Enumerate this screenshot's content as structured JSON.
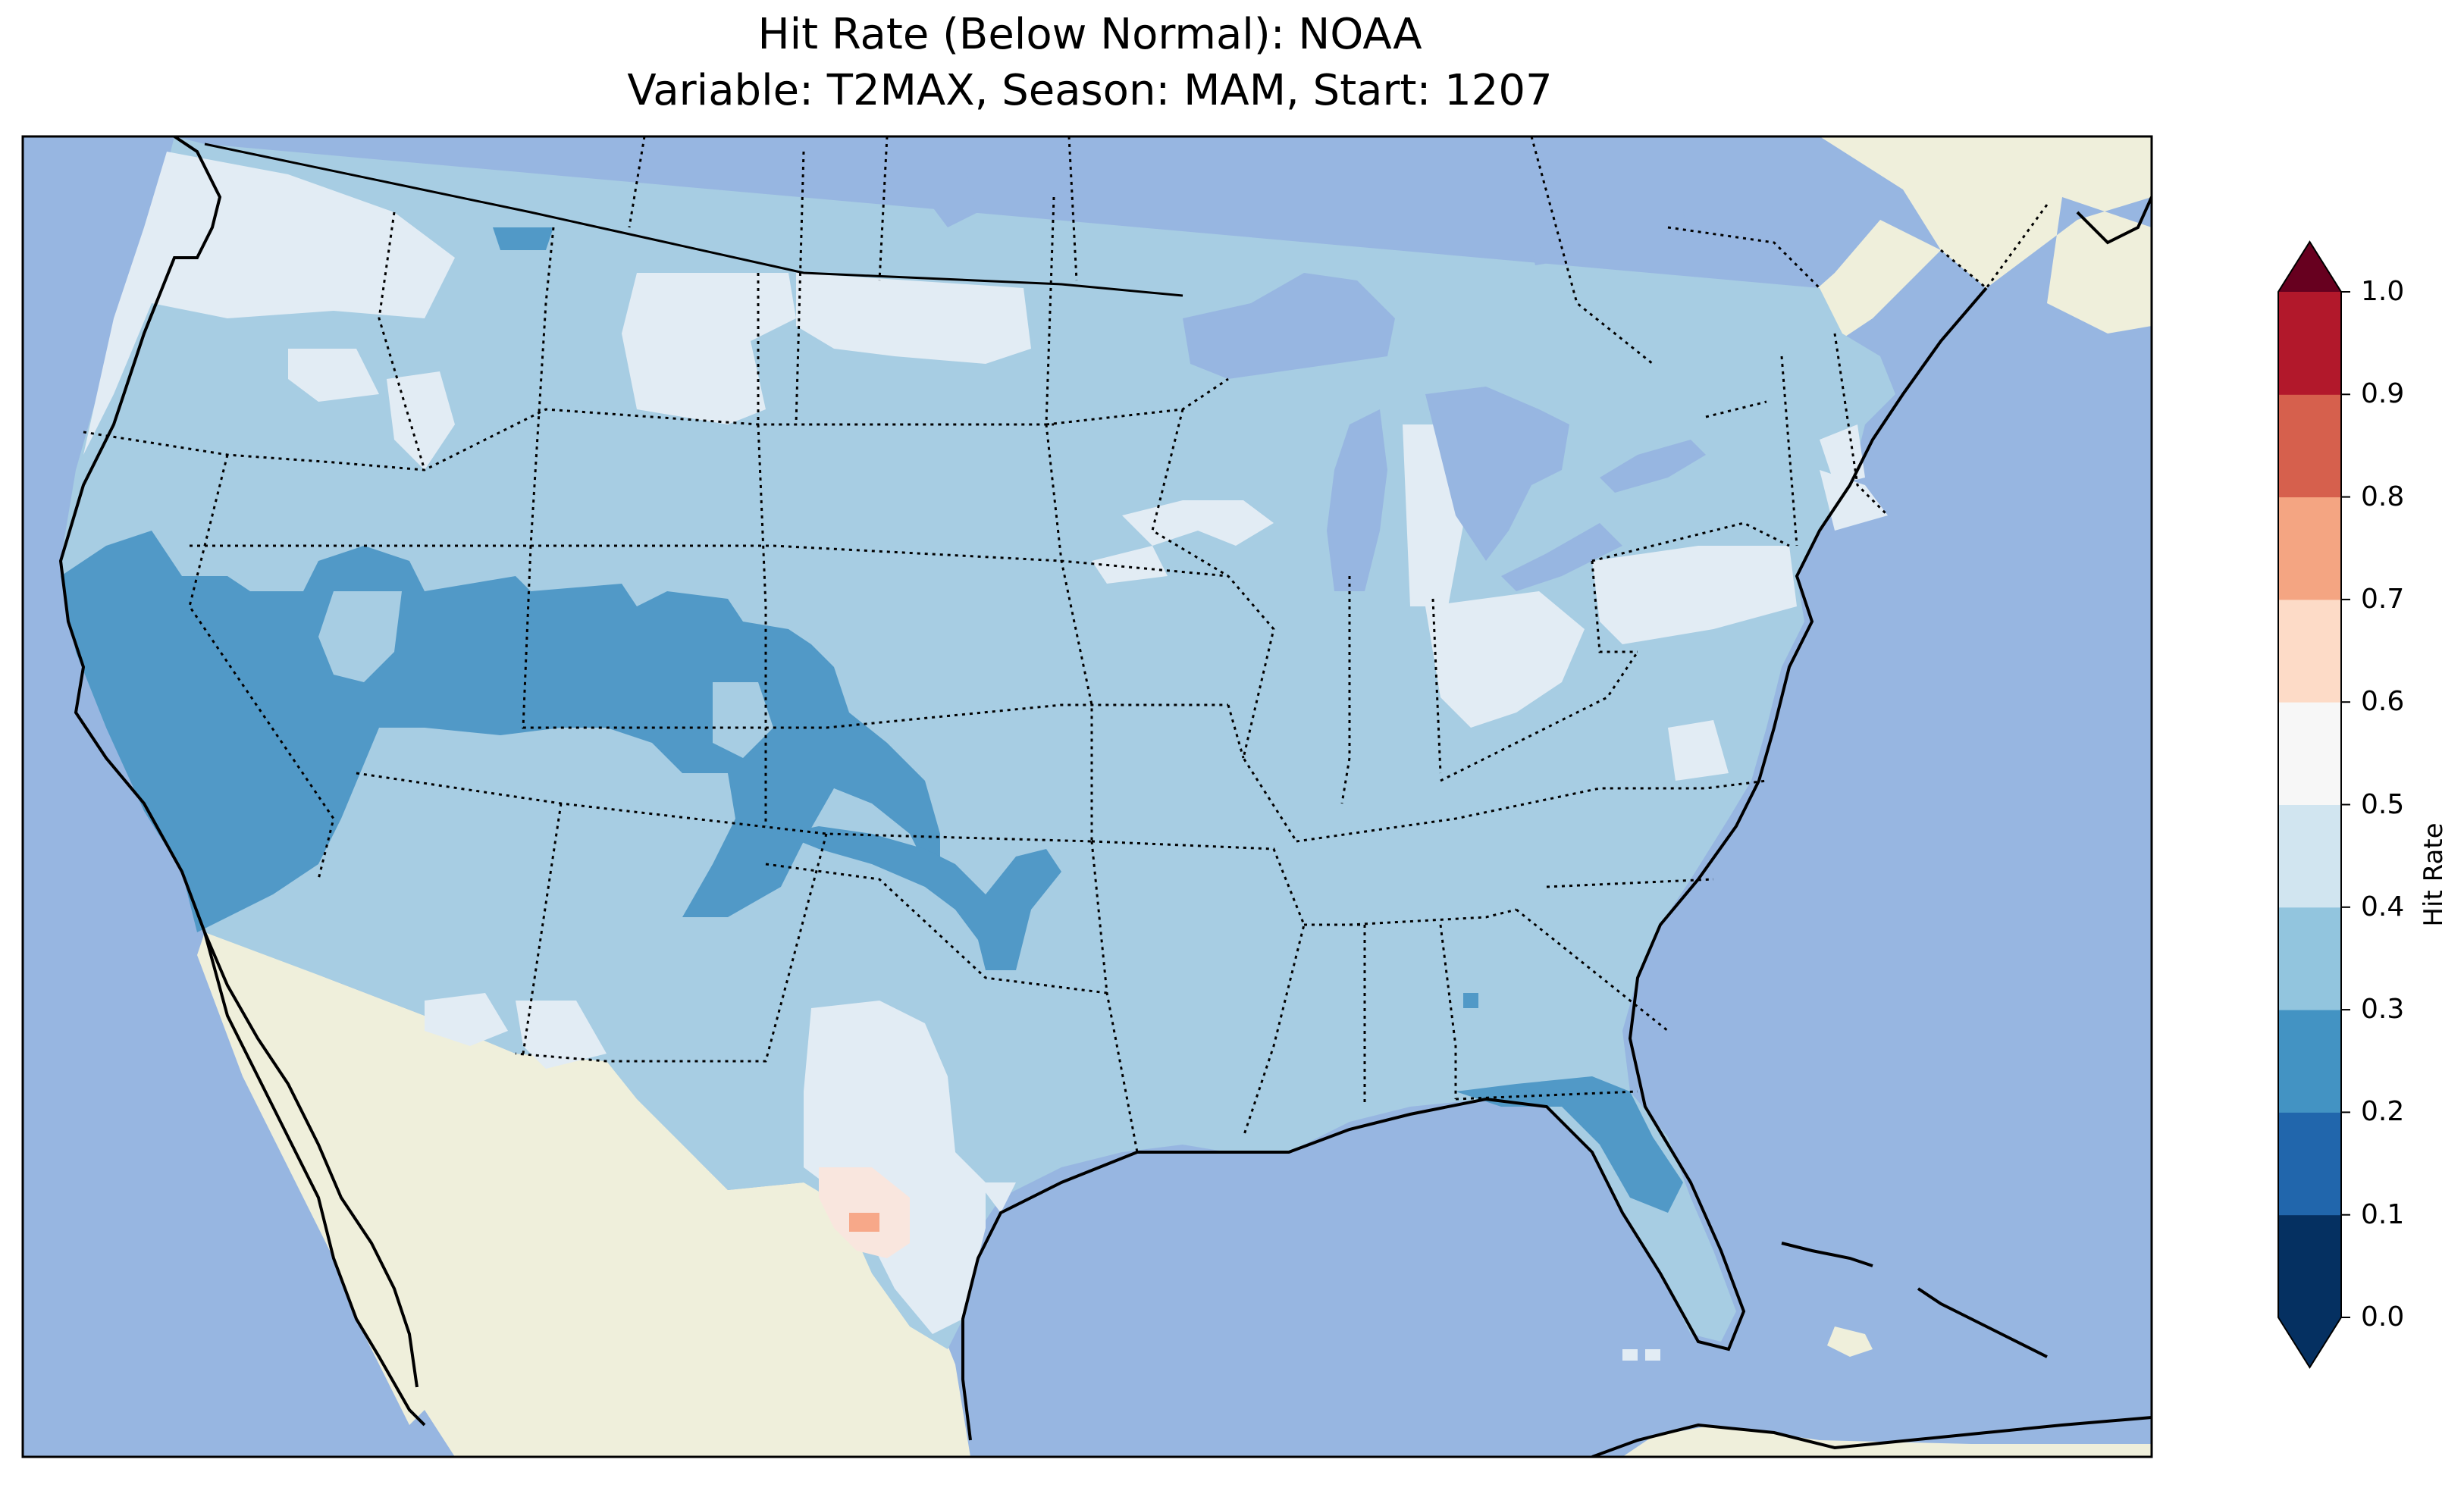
{
  "title": {
    "line1": "Hit Rate (Below Normal): NOAA",
    "line2": "Variable: T2MAX, Season: MAM, Start: 1207"
  },
  "colorbar": {
    "label": "Hit Rate",
    "ticks": [
      "0.0",
      "0.1",
      "0.2",
      "0.3",
      "0.4",
      "0.5",
      "0.6",
      "0.7",
      "0.8",
      "0.9",
      "1.0"
    ],
    "colors": [
      "#053061",
      "#2166ac",
      "#4393c3",
      "#92c5de",
      "#d1e5f0",
      "#f7f7f7",
      "#fddbc7",
      "#f4a582",
      "#d6604d",
      "#b2182b",
      "#67001f"
    ],
    "extend": "both"
  },
  "colors": {
    "ocean": "#97b6e1",
    "land": "#efefdb",
    "hit_0_2_to_0_3": "#5199c7",
    "hit_0_3_to_0_4": "#a7cde3",
    "hit_0_4_to_0_5": "#e2ecf4",
    "hit_0_5_to_0_6": "#f9e6de",
    "hit_0_6_to_0_7": "#f7a889"
  }
}
